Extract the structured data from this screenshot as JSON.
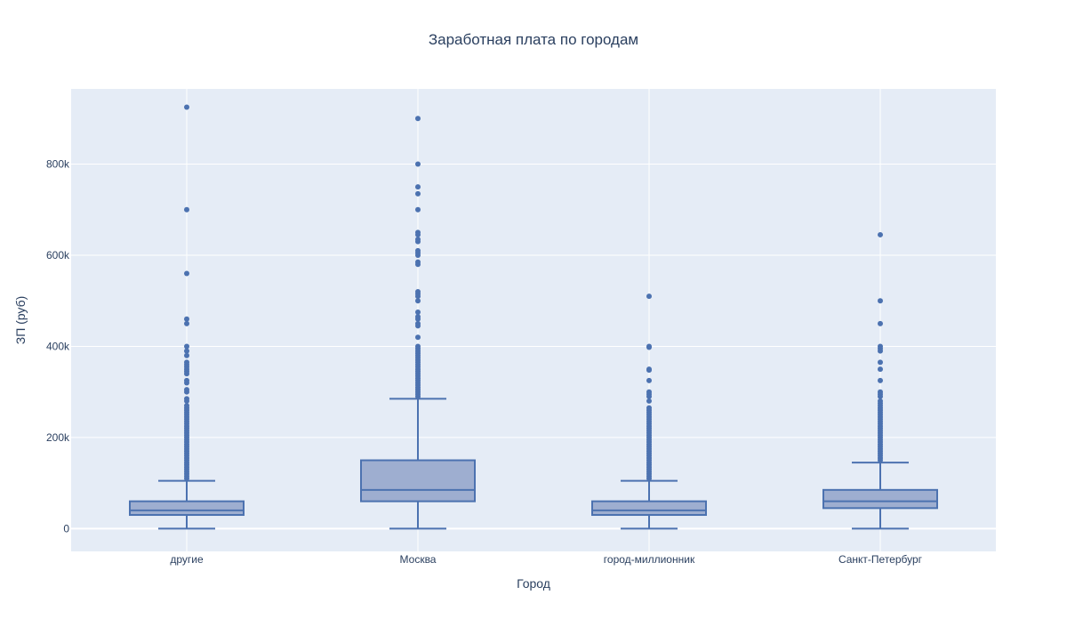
{
  "chart_data": {
    "type": "box",
    "title": "Заработная плата по городам",
    "xlabel": "Город",
    "ylabel": "ЗП (руб)",
    "ylim": [
      -50000,
      965000
    ],
    "y_ticks": [
      0,
      200000,
      400000,
      600000,
      800000
    ],
    "y_tick_labels": [
      "0",
      "200k",
      "400k",
      "600k",
      "800k"
    ],
    "grid": true,
    "colors": {
      "plot_background": "#e5ecf6",
      "gridline": "#ffffff",
      "box_line": "#4c72b0",
      "box_fill": "#9eaed0",
      "text": "#2a3f5f"
    },
    "categories": [
      "другие",
      "Москва",
      "город-миллионник",
      "Санкт-Петербург"
    ],
    "boxes": [
      {
        "category": "другие",
        "lower_fence": 0,
        "q1": 30000,
        "median": 40000,
        "q3": 60000,
        "upper_fence": 105000,
        "outliers": [
          925000,
          700000,
          560000,
          460000,
          450000,
          400000,
          390000,
          380000,
          365000,
          360000,
          355000,
          350000,
          345000,
          340000,
          325000,
          320000,
          305000,
          300000,
          285000,
          280000,
          270000,
          265000,
          260000,
          255000,
          250000,
          245000,
          240000,
          235000,
          230000,
          225000,
          220000,
          215000,
          210000,
          205000,
          200000,
          195000,
          190000,
          185000,
          180000,
          175000,
          170000,
          165000,
          160000,
          155000,
          150000,
          145000,
          140000,
          135000,
          130000,
          125000,
          120000,
          115000,
          110000
        ]
      },
      {
        "category": "Москва",
        "lower_fence": 0,
        "q1": 60000,
        "median": 85000,
        "q3": 150000,
        "upper_fence": 285000,
        "outliers": [
          900000,
          800000,
          750000,
          735000,
          700000,
          650000,
          645000,
          635000,
          630000,
          610000,
          605000,
          600000,
          585000,
          580000,
          520000,
          515000,
          510000,
          500000,
          475000,
          465000,
          460000,
          450000,
          445000,
          420000,
          400000,
          395000,
          390000,
          385000,
          380000,
          375000,
          370000,
          365000,
          360000,
          355000,
          350000,
          345000,
          340000,
          335000,
          330000,
          325000,
          320000,
          315000,
          310000,
          305000,
          300000,
          295000,
          290000
        ]
      },
      {
        "category": "город-миллионник",
        "lower_fence": 0,
        "q1": 30000,
        "median": 40000,
        "q3": 60000,
        "upper_fence": 105000,
        "outliers": [
          510000,
          400000,
          398000,
          350000,
          348000,
          325000,
          300000,
          295000,
          290000,
          280000,
          265000,
          260000,
          255000,
          250000,
          245000,
          240000,
          235000,
          230000,
          225000,
          220000,
          215000,
          210000,
          205000,
          200000,
          195000,
          190000,
          185000,
          180000,
          175000,
          170000,
          165000,
          160000,
          155000,
          150000,
          145000,
          140000,
          135000,
          130000,
          125000,
          120000,
          115000,
          110000
        ]
      },
      {
        "category": "Санкт-Петербург",
        "lower_fence": 0,
        "q1": 45000,
        "median": 60000,
        "q3": 85000,
        "upper_fence": 145000,
        "outliers": [
          645000,
          500000,
          450000,
          400000,
          395000,
          390000,
          365000,
          350000,
          325000,
          300000,
          295000,
          290000,
          280000,
          275000,
          270000,
          265000,
          260000,
          255000,
          250000,
          245000,
          240000,
          235000,
          230000,
          225000,
          220000,
          215000,
          210000,
          205000,
          200000,
          195000,
          190000,
          185000,
          180000,
          175000,
          170000,
          165000,
          160000,
          155000,
          150000
        ]
      }
    ]
  }
}
